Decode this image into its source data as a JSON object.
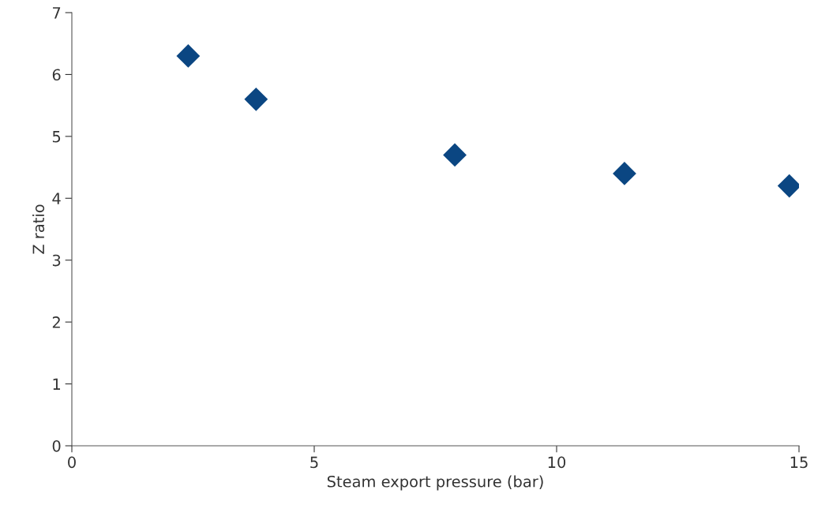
{
  "chart_data": {
    "type": "scatter",
    "xlabel": "Steam export pressure (bar)",
    "ylabel": "Z ratio",
    "x": [
      2.4,
      3.8,
      7.9,
      11.4,
      14.8
    ],
    "series": [
      {
        "color": "#0b4682",
        "values": [
          6.3,
          5.6,
          4.7,
          4.4,
          4.2
        ]
      }
    ],
    "xlim": [
      0,
      15
    ],
    "xticks": [
      0,
      5,
      10,
      15
    ],
    "ylim": [
      0,
      7
    ],
    "yticks": [
      0,
      1,
      2,
      3,
      4,
      5,
      6,
      7
    ],
    "marker": "diamond",
    "grid": false,
    "legend": false
  }
}
